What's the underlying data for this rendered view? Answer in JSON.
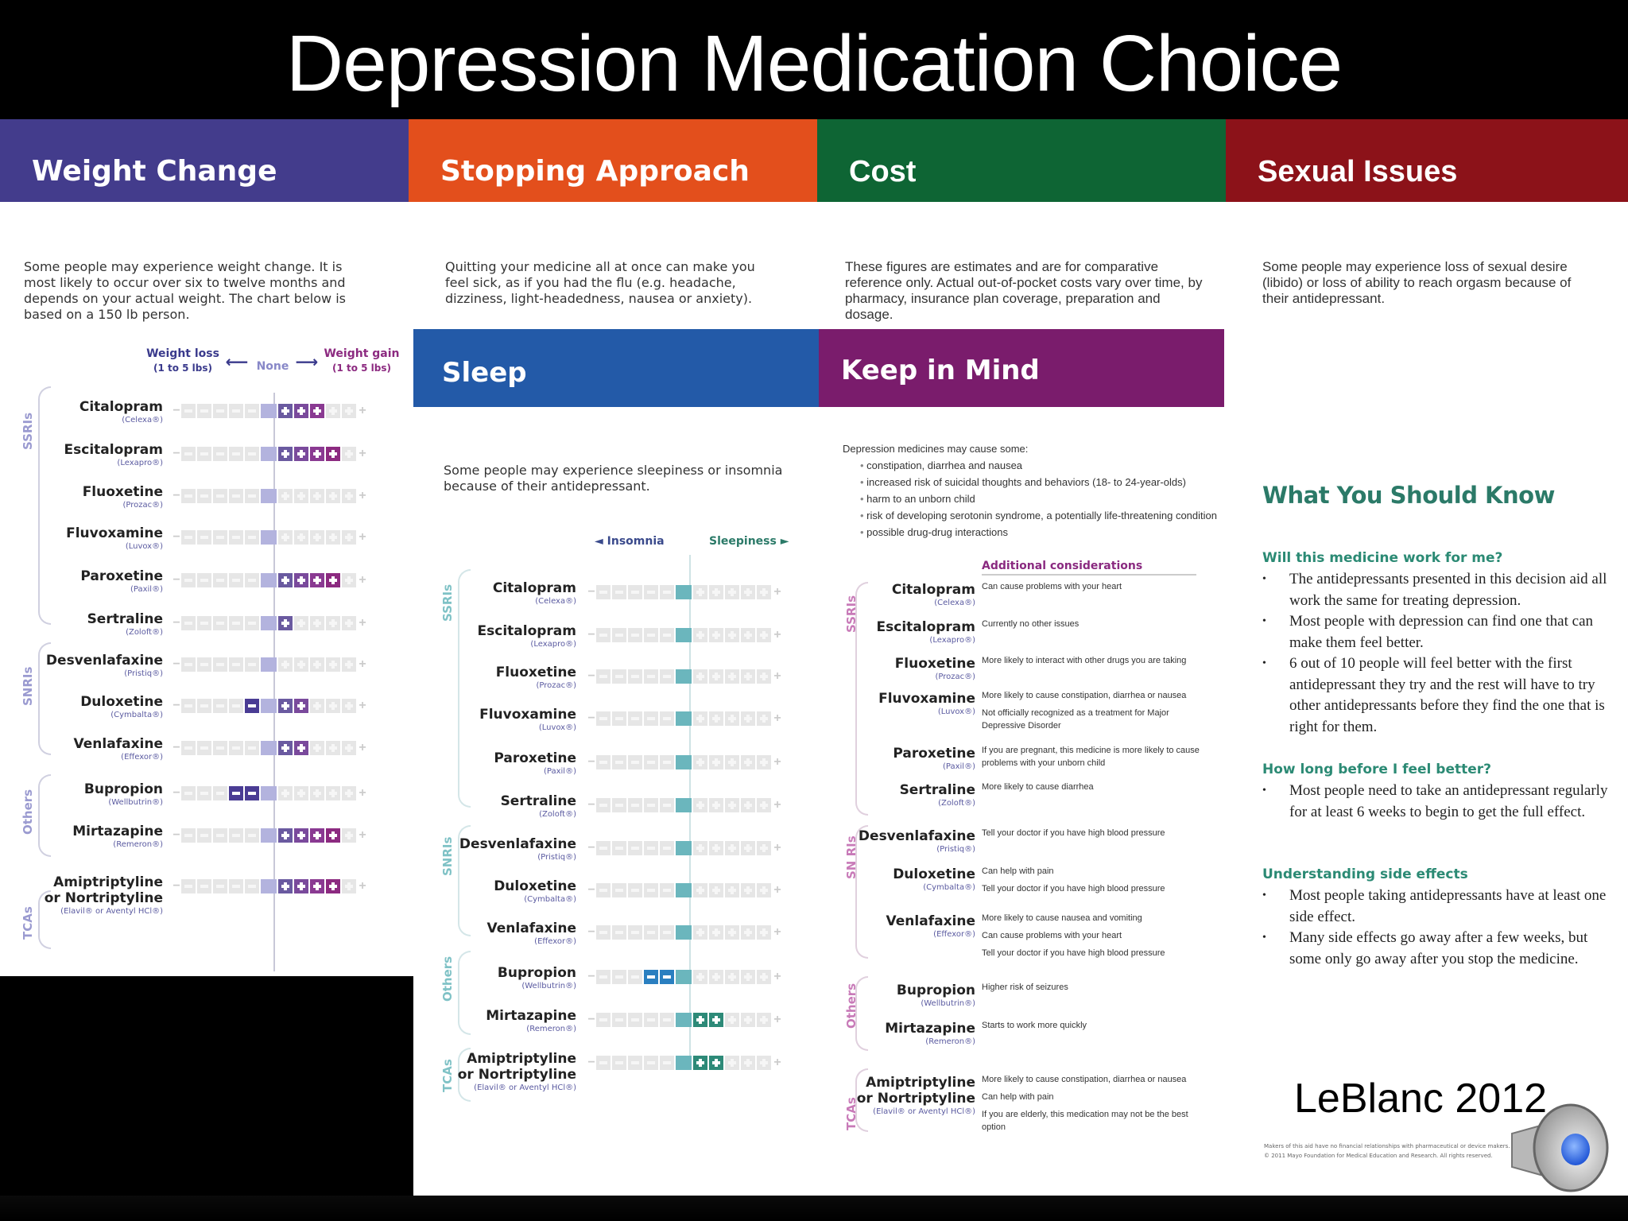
{
  "title": "Depression Medication Choice",
  "bands": {
    "weight": {
      "label": "Weight Change",
      "color": "#433c8c"
    },
    "stopping": {
      "label": "Stopping Approach",
      "color": "#e34f1c"
    },
    "cost": {
      "label": "Cost",
      "color": "#0e6534"
    },
    "sexual": {
      "label": "Sexual Issues",
      "color": "#8c1219"
    }
  },
  "intros": {
    "weight": "Some people may experience weight change. It is most likely to occur over six to twelve months and depends on your actual weight. The chart below is based on a 150 lb person.",
    "stopping": "Quitting your medicine all at once can make you feel sick, as if you had the flu (e.g. headache, dizziness, light-headedness, nausea or anxiety).",
    "cost": "These figures are estimates and are for comparative reference only. Actual out-of-pocket costs vary over time, by pharmacy, insurance plan coverage, preparation and dosage.",
    "sexual": "Some people may experience loss of sexual desire (libido) or loss of ability to reach orgasm because of their antidepressant."
  },
  "weight_chart": {
    "left_label": "Weight loss",
    "left_sub": "(1 to 5 lbs)",
    "center_label": "None",
    "right_label": "Weight gain",
    "right_sub": "(1 to 5 lbs)",
    "minus_symbol": "−",
    "plus_symbol": "+"
  },
  "sleep": {
    "header": "Sleep",
    "intro": "Some people may experience sleepiness or insomnia because of their antidepressant.",
    "left_label": "◄ Insomnia",
    "right_label": "Sleepiness ►"
  },
  "keep_in_mind": {
    "header": "Keep in Mind",
    "intro": "Depression medicines may cause some:",
    "bullets": [
      "constipation, diarrhea and nausea",
      "increased risk of suicidal thoughts and behaviors (18- to 24-year-olds)",
      "harm to an unborn child",
      "risk of developing serotonin syndrome, a potentially life-threatening condition",
      "possible drug-drug interactions"
    ],
    "additional_label": "Additional considerations"
  },
  "classes": {
    "ssri": "SSRIs",
    "snri": "SNRIs",
    "snri_keep": "SN RIs",
    "others": "Others",
    "tca": "TCAs"
  },
  "drugs": [
    {
      "name": "Citalopram",
      "brand": "(Celexa®)",
      "weight": 3,
      "sleep": 0,
      "notes": [
        "Can cause problems with your heart"
      ]
    },
    {
      "name": "Escitalopram",
      "brand": "(Lexapro®)",
      "weight": 4,
      "sleep": 0,
      "notes": [
        "Currently no other issues"
      ]
    },
    {
      "name": "Fluoxetine",
      "brand": "(Prozac®)",
      "weight": 0,
      "sleep": 0,
      "notes": [
        "More likely to interact with other drugs you are taking"
      ]
    },
    {
      "name": "Fluvoxamine",
      "brand": "(Luvox®)",
      "weight": 0,
      "sleep": 0,
      "notes": [
        "More likely to cause constipation, diarrhea or nausea",
        "Not officially recognized as a treatment for Major Depressive Disorder"
      ]
    },
    {
      "name": "Paroxetine",
      "brand": "(Paxil®)",
      "weight": 4,
      "sleep": 0,
      "notes": [
        "If you are pregnant, this medicine is more likely to cause problems with your unborn child"
      ]
    },
    {
      "name": "Sertraline",
      "brand": "(Zoloft®)",
      "weight": 1,
      "sleep": 0,
      "notes": [
        "More likely to cause diarrhea"
      ]
    },
    {
      "name": "Desvenlafaxine",
      "brand": "(Pristiq®)",
      "weight": 0,
      "sleep": 0,
      "notes": [
        "Tell your doctor if you have high blood pressure"
      ]
    },
    {
      "name": "Duloxetine",
      "brand": "(Cymbalta®)",
      "weight_minus": 1,
      "weight": 2,
      "sleep": 0,
      "notes": [
        "Can help with pain",
        "Tell your doctor if you have high blood pressure"
      ]
    },
    {
      "name": "Venlafaxine",
      "brand": "(Effexor®)",
      "weight": 2,
      "sleep": 0,
      "notes": [
        "More likely to cause nausea and vomiting",
        "Can cause problems with your heart",
        "Tell your doctor if you have high blood pressure"
      ]
    },
    {
      "name": "Bupropion",
      "brand": "(Wellbutrin®)",
      "weight": -2,
      "sleep": -2,
      "notes": [
        "Higher risk of seizures"
      ]
    },
    {
      "name": "Mirtazapine",
      "brand": "(Remeron®)",
      "weight": 4,
      "sleep": 2,
      "notes": [
        "Starts to work more quickly"
      ]
    },
    {
      "name": "Amiptriptyline or Nortriptyline",
      "name1": "Amiptriptyline",
      "name2": "or Nortriptyline",
      "brand": "(Elavil® or Aventyl HCl®)",
      "weight": 4,
      "sleep": 2,
      "notes": [
        "More likely to cause constipation, diarrhea or nausea",
        "Can help with pain",
        "If you are elderly, this medication may not be the best option"
      ]
    }
  ],
  "what_you_should_know": {
    "header": "What You Should Know",
    "sections": [
      {
        "question": "Will this medicine work for me?",
        "bullets": [
          "The antidepressants presented in this decision aid all work the same for treating depression.",
          "Most people with depression can find one that can make them feel better.",
          "6 out of 10 people will feel better with the first antidepressant they try and the rest will have to try other antidepressants before they find the one that is right for them."
        ]
      },
      {
        "question": "How long before I feel better?",
        "bullets": [
          "Most people need to take an antidepressant regularly for at least 6 weeks to begin to get the full effect."
        ]
      },
      {
        "question": "Understanding side effects",
        "bullets": [
          "Most people taking antidepressants have at least one side effect.",
          "Many side effects go away after a few weeks, but some only go away after you stop the medicine."
        ]
      }
    ]
  },
  "citation": "LeBlanc 2012",
  "fineprint": [
    "Makers of this aid have no financial relationships with pharmaceutical or device makers.",
    "© 2011 Mayo Foundation for Medical Education and Research. All rights reserved."
  ],
  "colors": {
    "weight_center": "#b3b3de",
    "weight_plus": [
      "#6a5aa0",
      "#7a4a9c",
      "#8a3a92",
      "#8c2a80"
    ],
    "weight_minus": "#4a3c94",
    "sleep_center": "#6bb6bd",
    "sleep_plus": "#2d8a78",
    "sleep_minus": "#2a7fc0"
  },
  "audio_icon": "speaker-icon"
}
